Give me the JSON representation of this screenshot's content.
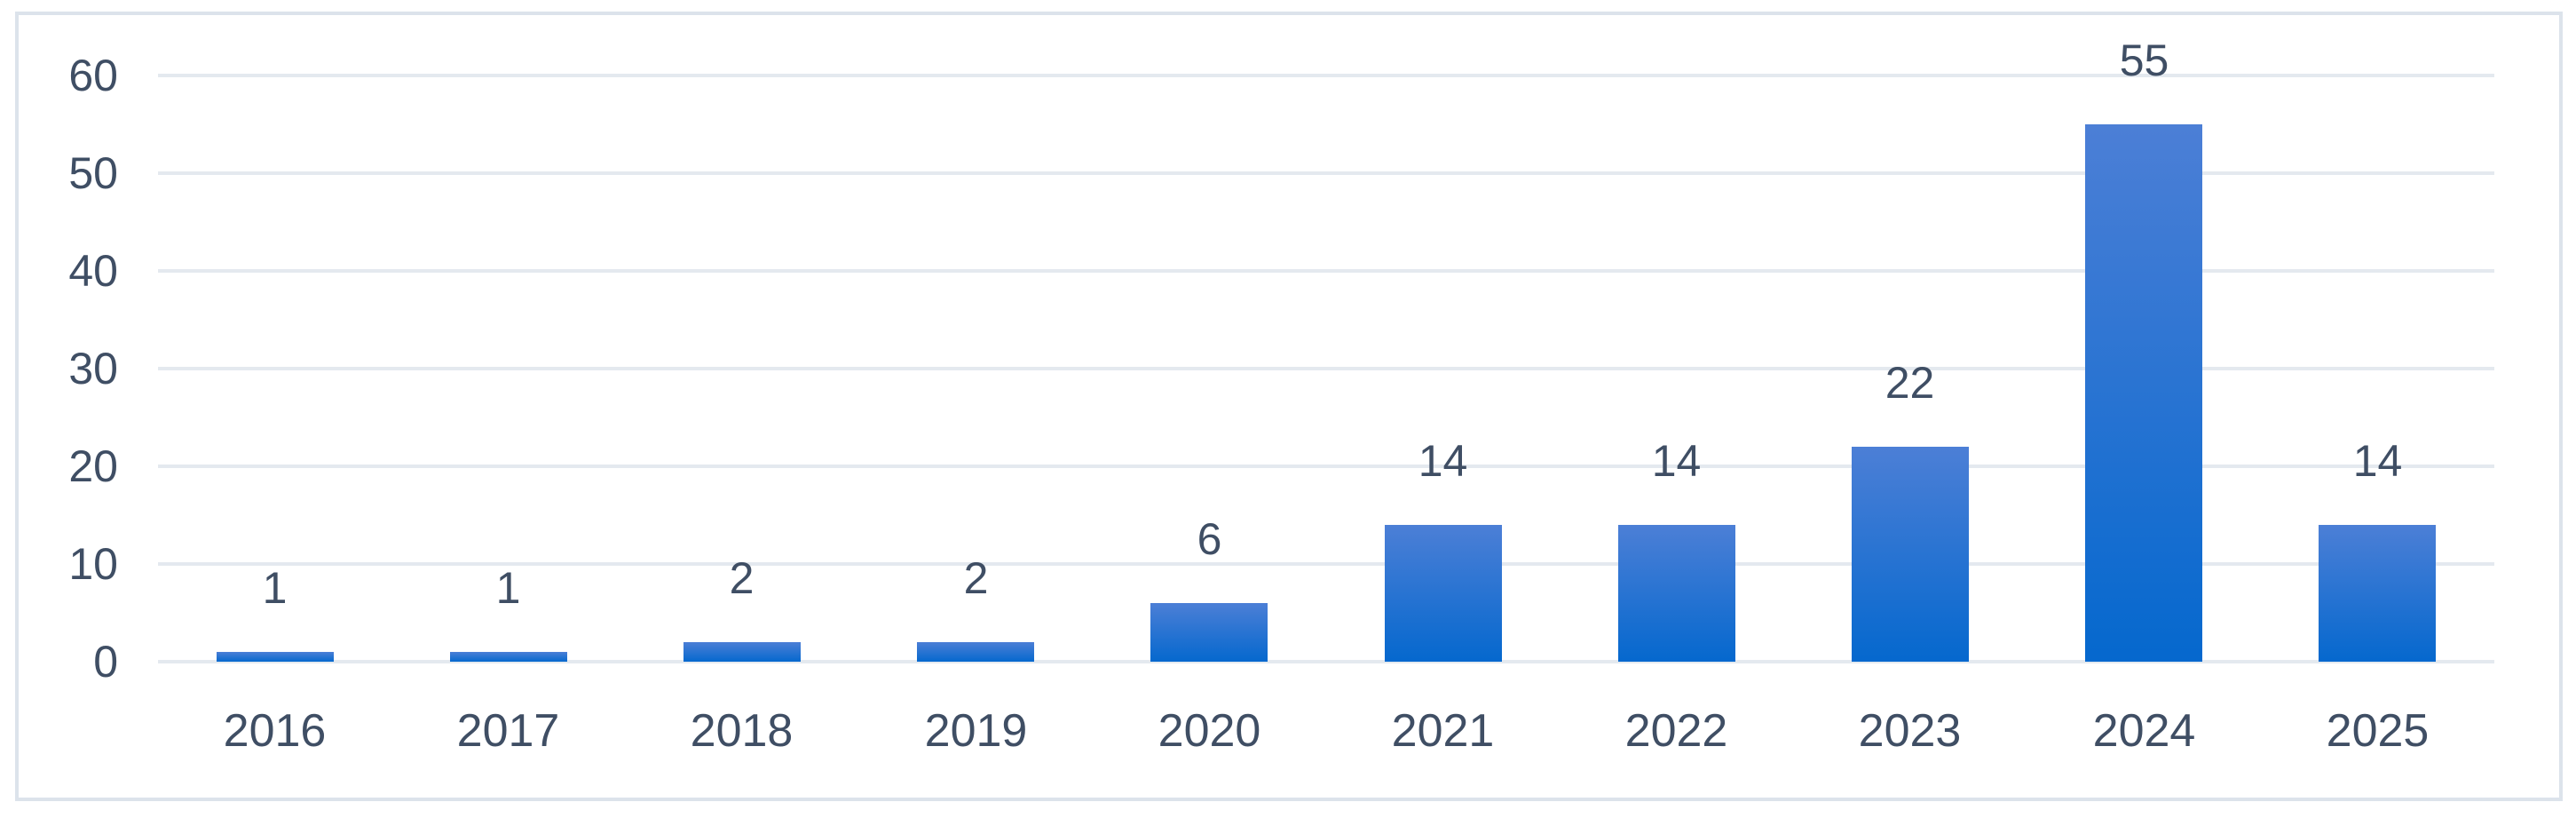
{
  "chart_data": {
    "type": "bar",
    "categories": [
      "2016",
      "2017",
      "2018",
      "2019",
      "2020",
      "2021",
      "2022",
      "2023",
      "2024",
      "2025"
    ],
    "values": [
      1,
      1,
      2,
      2,
      6,
      14,
      14,
      22,
      55,
      14
    ],
    "data_labels": [
      "1",
      "1",
      "2",
      "2",
      "6",
      "14",
      "14",
      "22",
      "55",
      "14"
    ],
    "title": "",
    "xlabel": "",
    "ylabel": "",
    "ylim": [
      0,
      60
    ],
    "yticks": [
      0,
      10,
      20,
      30,
      40,
      50,
      60
    ],
    "grid": true,
    "legend_position": "none"
  },
  "colors": {
    "bar_gradient_top": "#4C7FD6",
    "bar_gradient_bottom": "#0568CE",
    "gridline": "#E4E9EF",
    "axis_line": "#E4E9EF",
    "label_text": "#3F4E64",
    "chart_border": "#DCE3EB",
    "background": "#FFFFFF"
  }
}
